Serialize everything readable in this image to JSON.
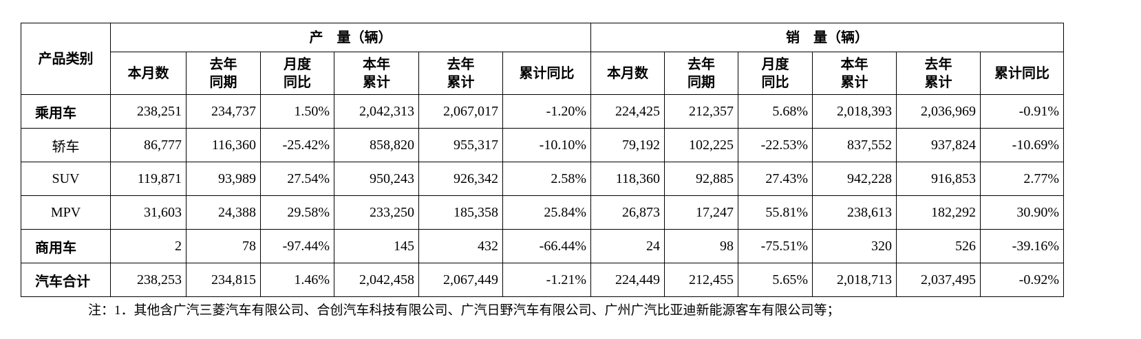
{
  "table": {
    "corner": "产品类别",
    "groups": [
      "产　量（辆）",
      "销　量（辆）"
    ],
    "columns": [
      "本月数",
      "去年\n同期",
      "月度\n同比",
      "本年\n累计",
      "去年\n累计",
      "累计同比",
      "本月数",
      "去年\n同期",
      "月度\n同比",
      "本年\n累计",
      "去年\n累计",
      "累计同比"
    ],
    "rows": [
      [
        "乘用车",
        "238,251",
        "234,737",
        "1.50%",
        "2,042,313",
        "2,067,017",
        "-1.20%",
        "224,425",
        "212,357",
        "5.68%",
        "2,018,393",
        "2,036,969",
        "-0.91%"
      ],
      [
        "轿车",
        "86,777",
        "116,360",
        "-25.42%",
        "858,820",
        "955,317",
        "-10.10%",
        "79,192",
        "102,225",
        "-22.53%",
        "837,552",
        "937,824",
        "-10.69%"
      ],
      [
        "SUV",
        "119,871",
        "93,989",
        "27.54%",
        "950,243",
        "926,342",
        "2.58%",
        "118,360",
        "92,885",
        "27.43%",
        "942,228",
        "916,853",
        "2.77%"
      ],
      [
        "MPV",
        "31,603",
        "24,388",
        "29.58%",
        "233,250",
        "185,358",
        "25.84%",
        "26,873",
        "17,247",
        "55.81%",
        "238,613",
        "182,292",
        "30.90%"
      ],
      [
        "商用车",
        "2",
        "78",
        "-97.44%",
        "145",
        "432",
        "-66.44%",
        "24",
        "98",
        "-75.51%",
        "320",
        "526",
        "-39.16%"
      ],
      [
        "汽车合计",
        "238,253",
        "234,815",
        "1.46%",
        "2,042,458",
        "2,067,449",
        "-1.21%",
        "224,449",
        "212,455",
        "5.65%",
        "2,018,713",
        "2,037,495",
        "-0.92%"
      ]
    ],
    "bold_rows": [
      0,
      4,
      5
    ]
  },
  "note": "注：1．其他含广汽三菱汽车有限公司、合创汽车科技有限公司、广汽日野汽车有限公司、广州广汽比亚迪新能源客车有限公司等；"
}
